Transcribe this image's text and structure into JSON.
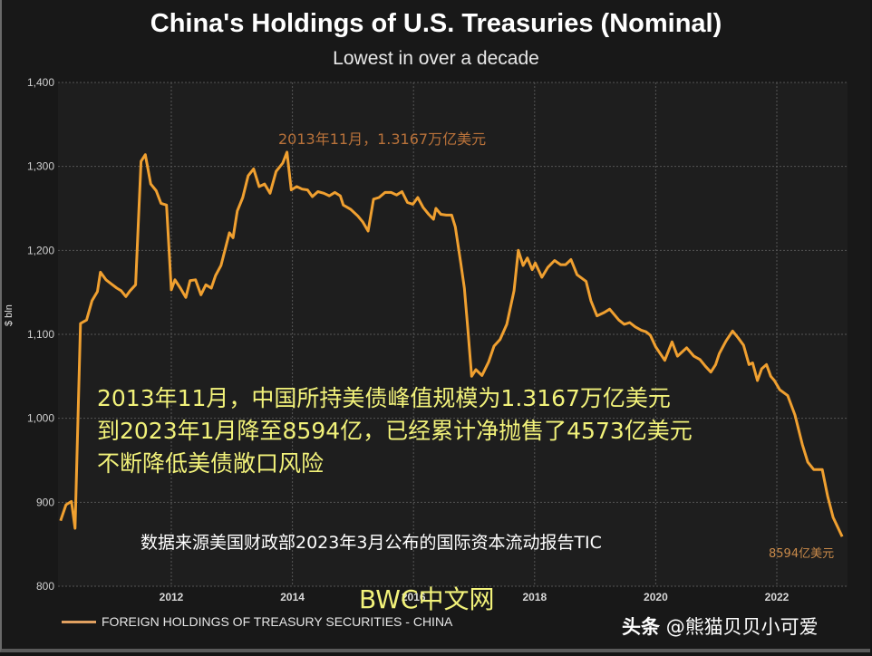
{
  "title": "China's Holdings of U.S. Treasuries (Nominal)",
  "subtitle": "Lowest in over a decade",
  "y_axis_title": "$ bln",
  "annotations": {
    "peak": "2013年11月，1.3167万亿美元",
    "end": "8594亿美元",
    "overlay_lines": [
      "2013年11月，中国所持美债峰值规模为1.3167万亿美元",
      "到2023年1月降至8594亿，已经累计净抛售了4573亿美元",
      "不断降低美债敞口风险"
    ],
    "source": "数据来源美国财政部2023年3月公布的国际资本流动报告TIC",
    "watermark_site": "BWC中文网",
    "watermark_author_prefix": "头条",
    "watermark_author": "@熊猫贝贝小可爱"
  },
  "legend": {
    "label": "FOREIGN HOLDINGS OF TREASURY SECURITIES - CHINA",
    "color": "#e0a060"
  },
  "colors": {
    "line": "#f0a030",
    "background": "#181818",
    "plot_bg": "#1e1e1e",
    "grid": "#555555"
  },
  "chart_data": {
    "type": "line",
    "title": "China's Holdings of U.S. Treasuries (Nominal)",
    "subtitle": "Lowest in over a decade",
    "xlabel": "",
    "ylabel": "$ bln",
    "ylim": [
      800,
      1400
    ],
    "xlim": [
      2010.1,
      2023.2
    ],
    "yticks": [
      800,
      900,
      1000,
      1100,
      1200,
      1300,
      1400
    ],
    "ytick_labels": [
      "800",
      "900",
      "1,000",
      "1,100",
      "1,200",
      "1,300",
      "1,400"
    ],
    "xticks": [
      2012,
      2014,
      2016,
      2018,
      2020,
      2022
    ],
    "grid": true,
    "legend_position": "bottom-left",
    "series": [
      {
        "name": "FOREIGN HOLDINGS OF TREASURY SECURITIES - CHINA",
        "x": [
          2010.17,
          2010.26,
          2010.35,
          2010.41,
          2010.5,
          2010.6,
          2010.69,
          2010.78,
          2010.83,
          2010.92,
          2011.01,
          2011.1,
          2011.17,
          2011.25,
          2011.32,
          2011.41,
          2011.5,
          2011.57,
          2011.66,
          2011.75,
          2011.83,
          2011.92,
          2012.0,
          2012.06,
          2012.15,
          2012.24,
          2012.31,
          2012.4,
          2012.49,
          2012.57,
          2012.66,
          2012.73,
          2012.82,
          2012.96,
          2013.02,
          2013.09,
          2013.18,
          2013.27,
          2013.36,
          2013.45,
          2013.54,
          2013.63,
          2013.73,
          2013.84,
          2013.91,
          2013.98,
          2014.07,
          2014.16,
          2014.25,
          2014.33,
          2014.42,
          2014.52,
          2014.61,
          2014.7,
          2014.79,
          2014.84,
          2014.96,
          2015.08,
          2015.16,
          2015.25,
          2015.34,
          2015.43,
          2015.53,
          2015.63,
          2015.72,
          2015.81,
          2015.9,
          2015.99,
          2016.07,
          2016.16,
          2016.25,
          2016.33,
          2016.37,
          2016.45,
          2016.54,
          2016.63,
          2016.69,
          2016.78,
          2016.84,
          2016.9,
          2016.96,
          2017.03,
          2017.13,
          2017.24,
          2017.33,
          2017.43,
          2017.54,
          2017.66,
          2017.73,
          2017.81,
          2017.88,
          2017.96,
          2018.01,
          2018.12,
          2018.22,
          2018.33,
          2018.43,
          2018.51,
          2018.6,
          2018.7,
          2018.85,
          2018.93,
          2019.03,
          2019.15,
          2019.24,
          2019.39,
          2019.48,
          2019.57,
          2019.66,
          2019.76,
          2019.84,
          2019.91,
          2020.0,
          2020.15,
          2020.27,
          2020.36,
          2020.51,
          2020.63,
          2020.73,
          2020.82,
          2020.91,
          2020.99,
          2021.05,
          2021.16,
          2021.27,
          2021.36,
          2021.45,
          2021.54,
          2021.6,
          2021.68,
          2021.75,
          2021.83,
          2021.9,
          2021.96,
          2022.05,
          2022.18,
          2022.3,
          2022.42,
          2022.51,
          2022.61,
          2022.75,
          2022.84,
          2022.93,
          2023.08
        ],
        "values": [
          878,
          897,
          901,
          869,
          1113,
          1117,
          1140,
          1151,
          1174,
          1165,
          1160,
          1155,
          1152,
          1145,
          1152,
          1159,
          1306,
          1314,
          1279,
          1271,
          1256,
          1254,
          1153,
          1165,
          1155,
          1144,
          1164,
          1165,
          1147,
          1159,
          1155,
          1170,
          1182,
          1221,
          1215,
          1247,
          1263,
          1289,
          1297,
          1276,
          1279,
          1268,
          1294,
          1304,
          1317,
          1272,
          1276,
          1273,
          1272,
          1264,
          1270,
          1268,
          1265,
          1269,
          1265,
          1254,
          1249,
          1241,
          1234,
          1223,
          1261,
          1263,
          1269,
          1269,
          1266,
          1270,
          1257,
          1255,
          1263,
          1251,
          1243,
          1237,
          1250,
          1243,
          1242,
          1242,
          1228,
          1185,
          1155,
          1104,
          1050,
          1058,
          1051,
          1067,
          1086,
          1094,
          1112,
          1152,
          1200,
          1182,
          1191,
          1177,
          1185,
          1168,
          1180,
          1188,
          1183,
          1183,
          1189,
          1171,
          1163,
          1140,
          1122,
          1126,
          1130,
          1117,
          1112,
          1114,
          1109,
          1105,
          1103,
          1099,
          1085,
          1069,
          1091,
          1074,
          1084,
          1074,
          1070,
          1062,
          1055,
          1064,
          1077,
          1092,
          1104,
          1096,
          1087,
          1064,
          1066,
          1045,
          1059,
          1064,
          1050,
          1045,
          1034,
          1027,
          1004,
          969,
          948,
          939,
          939,
          907,
          882,
          859
        ]
      }
    ],
    "annotations": [
      {
        "text": "2013年11月，1.3167万亿美元",
        "x": 2013.84,
        "y": 1316.7
      },
      {
        "text": "8594亿美元",
        "x": 2023.08,
        "y": 859.4
      }
    ]
  }
}
